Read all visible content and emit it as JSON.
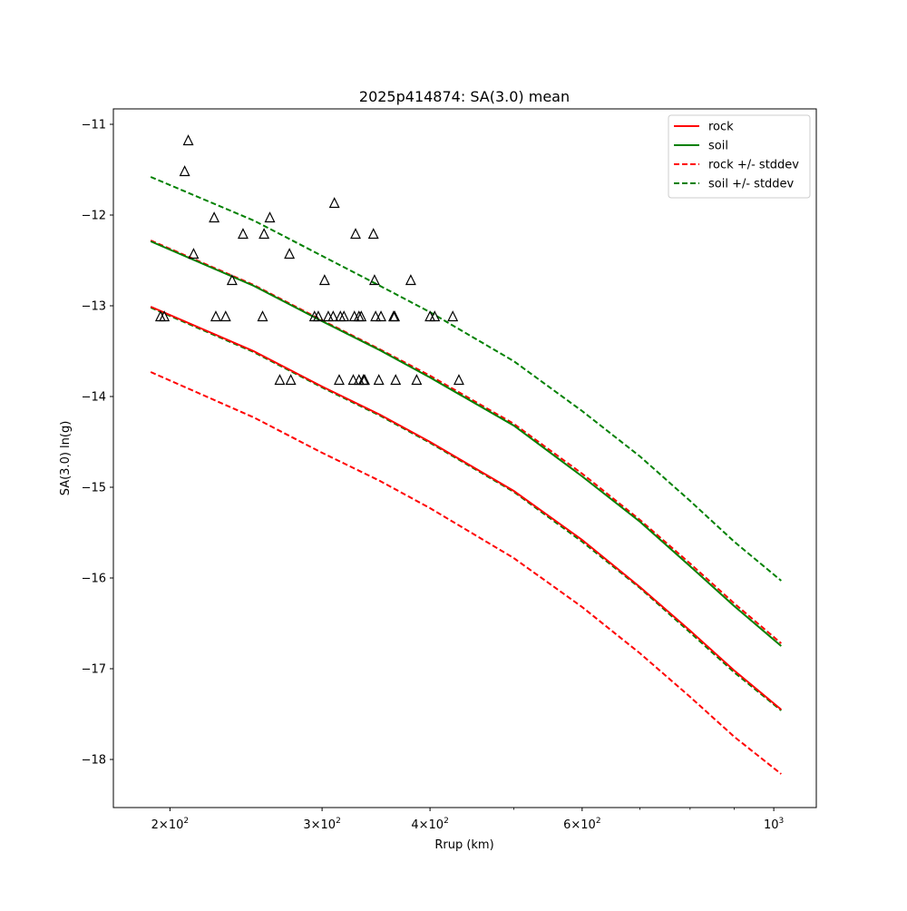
{
  "chart_data": {
    "type": "line",
    "title": "2025p414874: SA(3.0) mean",
    "xlabel": "Rrup (km)",
    "ylabel": "SA(3.0) ln(g)",
    "xscale": "log",
    "xlim": [
      172,
      1120
    ],
    "ylim": [
      -18.53,
      -10.83
    ],
    "x_ticks": [
      {
        "value": 200,
        "base": "2",
        "exp": "2"
      },
      {
        "value": 300,
        "base": "3",
        "exp": "2"
      },
      {
        "value": 400,
        "base": "4",
        "exp": "2"
      },
      {
        "value": 600,
        "base": "6",
        "exp": "2"
      },
      {
        "value": 1000,
        "base": "10",
        "exp": "3"
      }
    ],
    "x_label_prefix": "×",
    "y_ticks": [
      -11,
      -12,
      -13,
      -14,
      -15,
      -16,
      -17,
      -18
    ],
    "y_tick_labels": [
      "−11",
      "−12",
      "−13",
      "−14",
      "−15",
      "−16",
      "−17",
      "−18"
    ],
    "grid": false,
    "legend_position": "top-right",
    "legend": [
      {
        "label": "rock",
        "color": "#ff0000",
        "style": "solid"
      },
      {
        "label": "soil",
        "color": "#008000",
        "style": "solid"
      },
      {
        "label": "rock +/- stddev",
        "color": "#ff0000",
        "style": "dashed"
      },
      {
        "label": "soil +/- stddev",
        "color": "#008000",
        "style": "dashed"
      }
    ],
    "series": [
      {
        "name": "rock",
        "color": "#ff0000",
        "style": "solid",
        "x": [
          190,
          250,
          300,
          350,
          400,
          500,
          600,
          700,
          800,
          900,
          1020
        ],
        "y": [
          -13.01,
          -13.5,
          -13.89,
          -14.2,
          -14.5,
          -15.04,
          -15.58,
          -16.1,
          -16.58,
          -17.02,
          -17.45
        ]
      },
      {
        "name": "soil",
        "color": "#008000",
        "style": "solid",
        "x": [
          190,
          250,
          300,
          350,
          400,
          500,
          600,
          700,
          800,
          900,
          1020
        ],
        "y": [
          -12.29,
          -12.78,
          -13.17,
          -13.49,
          -13.79,
          -14.32,
          -14.88,
          -15.38,
          -15.87,
          -16.31,
          -16.75
        ]
      },
      {
        "name": "rock +/- stddev",
        "color": "#ff0000",
        "style": "dashed",
        "x": [
          190,
          250,
          300,
          350,
          400,
          500,
          600,
          700,
          800,
          900,
          1020
        ],
        "y": [
          -12.28,
          -12.77,
          -13.16,
          -13.48,
          -13.77,
          -14.3,
          -14.85,
          -15.36,
          -15.84,
          -16.28,
          -16.72
        ]
      },
      {
        "name": "rock +/- stddev",
        "color": "#ff0000",
        "style": "dashed",
        "x": [
          190,
          250,
          300,
          350,
          400,
          500,
          600,
          700,
          800,
          900,
          1020
        ],
        "y": [
          -13.73,
          -14.23,
          -14.62,
          -14.93,
          -15.23,
          -15.78,
          -16.32,
          -16.83,
          -17.31,
          -17.75,
          -18.16
        ]
      },
      {
        "name": "soil +/- stddev",
        "color": "#008000",
        "style": "dashed",
        "x": [
          190,
          250,
          300,
          350,
          400,
          500,
          600,
          700,
          800,
          900,
          1020
        ],
        "y": [
          -11.58,
          -12.06,
          -12.45,
          -12.78,
          -13.07,
          -13.61,
          -14.16,
          -14.66,
          -15.15,
          -15.6,
          -16.03
        ]
      },
      {
        "name": "soil +/- stddev",
        "color": "#008000",
        "style": "dashed",
        "x": [
          190,
          250,
          300,
          350,
          400,
          500,
          600,
          700,
          800,
          900,
          1020
        ],
        "y": [
          -13.02,
          -13.51,
          -13.9,
          -14.21,
          -14.51,
          -15.05,
          -15.6,
          -16.11,
          -16.6,
          -17.04,
          -17.46
        ]
      }
    ],
    "observations": {
      "marker": "triangle",
      "x": [
        195,
        197,
        208,
        210,
        213,
        225,
        226,
        232,
        236,
        243,
        256,
        257,
        261,
        268,
        275,
        276,
        294,
        297,
        302,
        305,
        309,
        310,
        314,
        315,
        318,
        326,
        327,
        328,
        331,
        331,
        333,
        335,
        336,
        344,
        345,
        346,
        349,
        351,
        363,
        364,
        365,
        380,
        386,
        400,
        405,
        425,
        432
      ],
      "y": [
        -13.12,
        -13.12,
        -11.52,
        -11.18,
        -12.43,
        -12.03,
        -13.12,
        -13.12,
        -12.72,
        -12.21,
        -13.12,
        -12.21,
        -12.03,
        -13.82,
        -12.43,
        -13.82,
        -13.12,
        -13.12,
        -12.72,
        -13.12,
        -13.12,
        -11.87,
        -13.82,
        -13.12,
        -13.12,
        -13.82,
        -13.12,
        -12.21,
        -13.12,
        -13.82,
        -13.12,
        -13.82,
        -13.82,
        -12.21,
        -12.72,
        -13.12,
        -13.82,
        -13.12,
        -13.12,
        -13.12,
        -13.82,
        -12.72,
        -13.82,
        -13.12,
        -13.12,
        -13.12,
        -13.82
      ]
    }
  }
}
